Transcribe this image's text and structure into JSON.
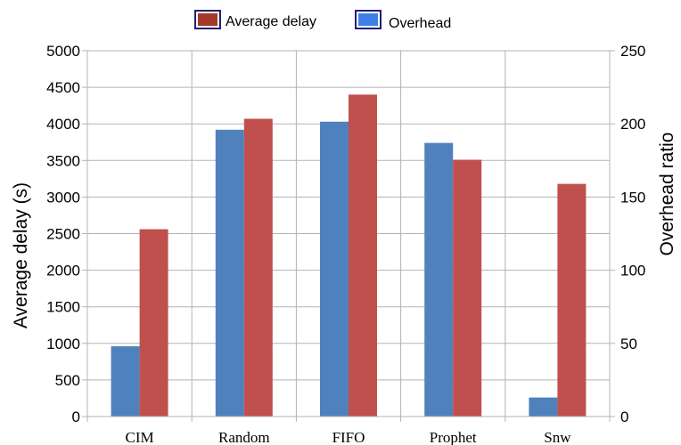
{
  "chart_data": {
    "type": "bar",
    "categories": [
      "CIM",
      "Random",
      "FIFO",
      "Prophet",
      "Snw"
    ],
    "series": [
      {
        "name": "Overhead",
        "axis": "right",
        "color": "#4f81bd",
        "values": [
          48,
          196,
          201.5,
          187,
          13
        ]
      },
      {
        "name": "Average delay",
        "axis": "left",
        "color": "#c0504d",
        "values": [
          2560,
          4070,
          4400,
          3510,
          3180
        ]
      }
    ],
    "legend": {
      "position": "top",
      "items": [
        {
          "label": "Average delay",
          "swatch": "#a33a2a"
        },
        {
          "label": "Overhead",
          "swatch": "#3f7fe8"
        }
      ]
    },
    "ylabel": "Average delay (s)",
    "y2label": "Overhead ratio",
    "ylim": [
      0,
      5000
    ],
    "y2lim": [
      0,
      250
    ],
    "yticks": [
      0,
      500,
      1000,
      1500,
      2000,
      2500,
      3000,
      3500,
      4000,
      4500,
      5000
    ],
    "y2ticks": [
      0,
      50,
      100,
      150,
      200,
      250
    ],
    "grid": true
  }
}
